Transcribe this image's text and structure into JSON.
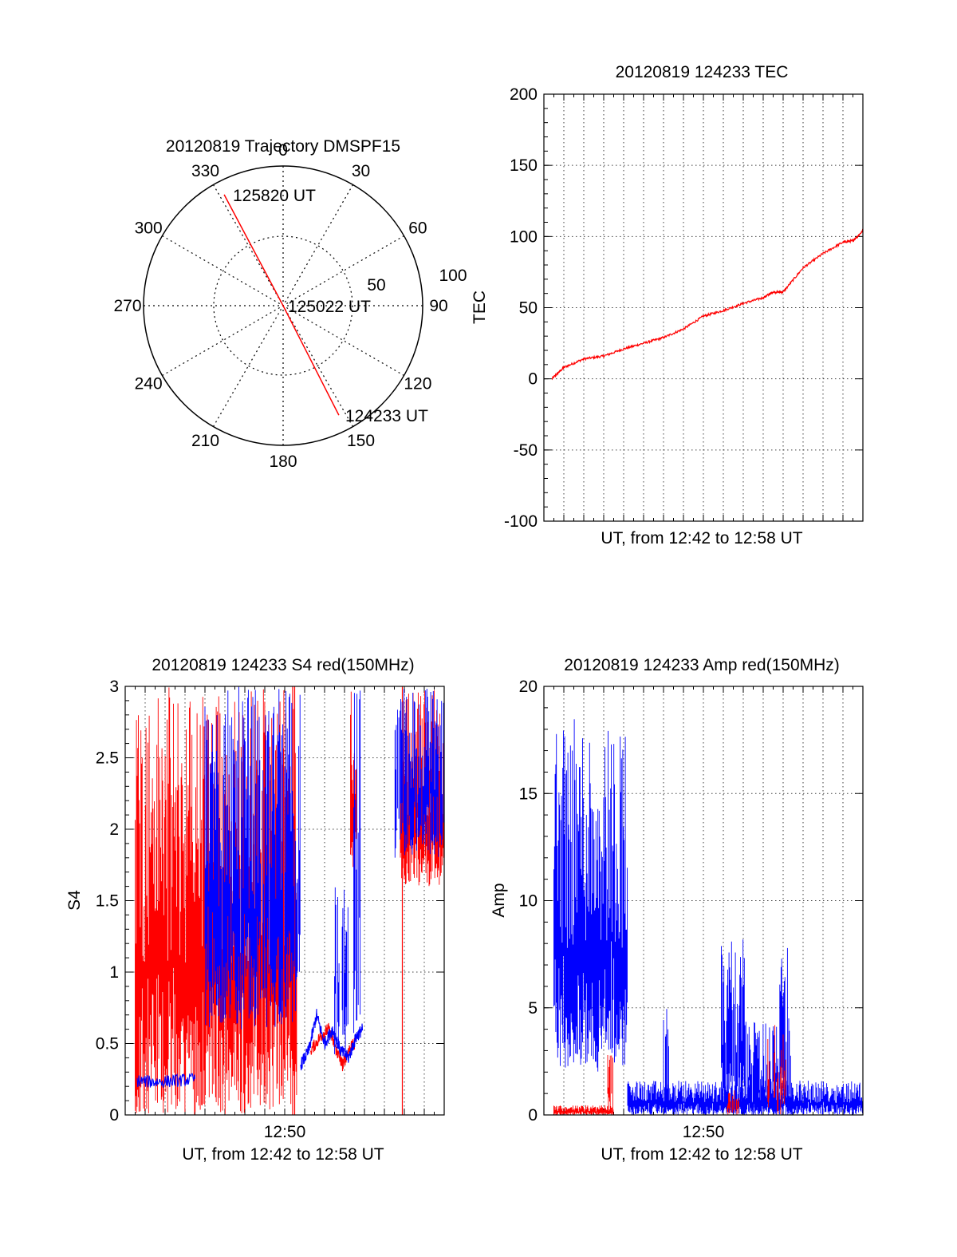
{
  "colors": {
    "red": "#ff0000",
    "blue": "#0000ff",
    "axis": "#000000",
    "grid": "#000000"
  },
  "chart_data": [
    {
      "id": "trajectory",
      "type": "polar",
      "title": "20120819 Trajectory DMSPF15",
      "angle_labels": [
        "0",
        "30",
        "60",
        "90",
        "120",
        "150",
        "180",
        "210",
        "240",
        "270",
        "300",
        "330"
      ],
      "radial_labels": [
        "50",
        "100"
      ],
      "rlim": [
        0,
        100
      ],
      "grid": true,
      "track": [
        {
          "azimuth": 332,
          "radius": 90,
          "time": "125820 UT"
        },
        {
          "azimuth": 0,
          "radius": 0,
          "time": "125022 UT"
        },
        {
          "azimuth": 153,
          "radius": 88,
          "time": "124233 UT"
        }
      ],
      "track_color": "#ff0000"
    },
    {
      "id": "tec",
      "type": "line",
      "title": "20120819 124233 TEC",
      "xlabel": "UT, from 12:42 to 12:58 UT",
      "ylabel": "TEC",
      "xlim": [
        0,
        16
      ],
      "ylim": [
        -100,
        200
      ],
      "yticks": [
        "-100",
        "-50",
        "0",
        "50",
        "100",
        "150",
        "200"
      ],
      "xtick_labels": [],
      "grid": true,
      "series": [
        {
          "color": "#ff0000",
          "x": [
            0.4,
            1.0,
            2.0,
            3.0,
            4.0,
            5.0,
            6.0,
            7.0,
            8.0,
            9.0,
            10.0,
            11.0,
            11.5,
            12.0,
            13.0,
            14.0,
            15.0,
            15.5,
            16.0
          ],
          "y": [
            0,
            8,
            14,
            16,
            21,
            25,
            29,
            35,
            44,
            48,
            53,
            57,
            61,
            61,
            78,
            88,
            96,
            97,
            104
          ]
        }
      ]
    },
    {
      "id": "s4",
      "type": "line",
      "title": "20120819 124233 S4 red(150MHz)",
      "xlabel": "UT, from 12:42 to 12:58 UT",
      "ylabel": "S4",
      "xlim": [
        0,
        16
      ],
      "ylim": [
        0,
        3
      ],
      "yticks": [
        "0",
        "0.5",
        "1",
        "1.5",
        "2",
        "2.5",
        "3"
      ],
      "xtick_labels": [
        {
          "value": 8,
          "label": "12:50"
        }
      ],
      "grid": true,
      "series": [
        {
          "color": "#ff0000",
          "segments": [
            {
              "x": [
                0.5,
                8.6
              ],
              "low": 0,
              "high": 3.0,
              "density": 1.0
            },
            {
              "x": [
                11.3,
                11.6
              ],
              "low": 1.7,
              "high": 3.0,
              "density": 1.0
            },
            {
              "x": [
                13.8,
                16.0
              ],
              "low": 1.6,
              "high": 3.0,
              "density": 1.0
            }
          ],
          "spikes": [
            [
              8.5,
              0,
              3.0
            ],
            [
              8.4,
              0,
              3.0
            ],
            [
              13.9,
              0,
              3.0
            ]
          ],
          "trace": [
            [
              9.3,
              0.45
            ],
            [
              9.8,
              0.55
            ],
            [
              10.2,
              0.6
            ],
            [
              10.6,
              0.45
            ],
            [
              10.9,
              0.35
            ],
            [
              11.2,
              0.45
            ],
            [
              11.5,
              0.5
            ]
          ]
        },
        {
          "color": "#0000ff",
          "trace": [
            [
              0.6,
              0.24
            ],
            [
              1.5,
              0.23
            ],
            [
              2.5,
              0.24
            ],
            [
              3.5,
              0.25
            ]
          ],
          "segments": [
            {
              "x": [
                4.0,
                8.8
              ],
              "low": 0.6,
              "high": 3.0,
              "density": 0.9
            },
            {
              "x": [
                10.5,
                11.2
              ],
              "low": 0.4,
              "high": 1.7,
              "density": 0.6
            },
            {
              "x": [
                11.4,
                11.8
              ],
              "low": 0.4,
              "high": 3.0,
              "density": 0.6
            },
            {
              "x": [
                13.5,
                16.0
              ],
              "low": 1.8,
              "high": 3.0,
              "density": 0.9
            }
          ],
          "trace2": [
            [
              8.8,
              0.35
            ],
            [
              9.2,
              0.45
            ],
            [
              9.6,
              0.7
            ],
            [
              10.0,
              0.5
            ],
            [
              10.4,
              0.6
            ],
            [
              10.8,
              0.45
            ],
            [
              11.2,
              0.4
            ],
            [
              11.6,
              0.55
            ],
            [
              11.9,
              0.6
            ]
          ]
        }
      ]
    },
    {
      "id": "amp",
      "type": "line",
      "title": "20120819 124233 Amp red(150MHz)",
      "xlabel": "UT, from 12:42 to 12:58 UT",
      "ylabel": "Amp",
      "xlim": [
        0,
        16
      ],
      "ylim": [
        0,
        20
      ],
      "yticks": [
        "0",
        "5",
        "10",
        "15",
        "20"
      ],
      "xtick_labels": [
        {
          "value": 8,
          "label": "12:50"
        }
      ],
      "grid": true,
      "series": [
        {
          "color": "#0000ff",
          "segments": [
            {
              "x": [
                0.5,
                4.2
              ],
              "low": 2.0,
              "high": 18.5,
              "density": 1.0
            },
            {
              "x": [
                4.2,
                16.0
              ],
              "low": 0.0,
              "high": 1.6,
              "density": 1.0
            },
            {
              "x": [
                6.0,
                6.3
              ],
              "low": 0.0,
              "high": 5.3,
              "density": 0.5
            },
            {
              "x": [
                8.9,
                10.1
              ],
              "low": 0.0,
              "high": 8.2,
              "density": 0.9
            },
            {
              "x": [
                10.1,
                11.8
              ],
              "low": 0.0,
              "high": 4.5,
              "density": 0.8
            },
            {
              "x": [
                11.8,
                12.4
              ],
              "low": 0.0,
              "high": 7.8,
              "density": 0.7
            }
          ]
        },
        {
          "color": "#ff0000",
          "segments": [
            {
              "x": [
                0.5,
                3.5
              ],
              "low": 0.0,
              "high": 0.45,
              "density": 1.0
            },
            {
              "x": [
                3.2,
                3.5
              ],
              "low": 0.0,
              "high": 2.8,
              "density": 0.6
            },
            {
              "x": [
                9.2,
                9.8
              ],
              "low": 0.0,
              "high": 1.2,
              "density": 0.5
            },
            {
              "x": [
                11.2,
                12.2
              ],
              "low": 0.0,
              "high": 4.5,
              "density": 0.5
            }
          ]
        }
      ]
    }
  ]
}
